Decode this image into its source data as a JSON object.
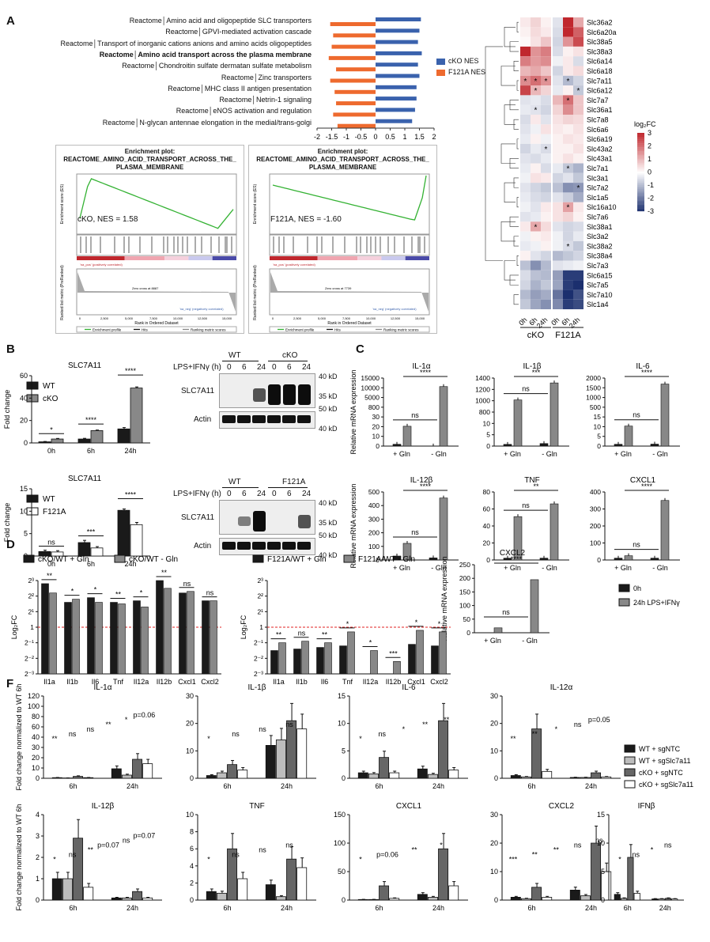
{
  "panels": {
    "a": "A",
    "b": "B",
    "c": "C",
    "d": "D",
    "e": "E",
    "f": "F"
  },
  "colors": {
    "cko": "#3a62ad",
    "f121a": "#ee6a2e",
    "pos": "#c0272d",
    "neg": "#1b2f6e",
    "grey": "#888888",
    "dark": "#1a1a1a",
    "light": "#bdbdbd",
    "white": "#ffffff"
  },
  "nes": {
    "labels": [
      "Reactome│Amino acid and oligopeptide SLC transporters",
      "Reactome│GPVI-mediated activation cascade",
      "Reactome│Transport of inorganic cations anions and amino acids oligopeptides",
      "Reactome│Amino acid transport across the plasma membrane",
      "Reactome│Chondroitin sulfate dermatan sulfate metabolism",
      "Reactome│Zinc transporters",
      "Reactome│MHC class II antigen presentation",
      "Reactome│Netrin-1 signaling",
      "Reactome│eNOS activation and regulation",
      "Reactome│N-glycan antennae elongation in the medial/trans-golgi"
    ],
    "bold_index": 3,
    "cko": [
      1.55,
      1.5,
      1.45,
      1.58,
      1.45,
      1.5,
      1.4,
      1.4,
      1.35,
      1.25
    ],
    "f121a": [
      -1.55,
      -1.45,
      -1.5,
      -1.6,
      -1.35,
      -1.55,
      -1.4,
      -1.35,
      -1.45,
      -1.3
    ],
    "ticks": [
      "-2",
      "-1.5",
      "-1",
      "-0.5",
      "0",
      "0.5",
      "1",
      "1.5",
      "2"
    ],
    "legend_cko": "cKO NES",
    "legend_f121a": "F121A NES"
  },
  "gsea": {
    "title1": "Enrichment plot:",
    "title2": "REACTOME_AMINO_ACID_TRANSPORT_ACROSS_THE_",
    "title3": "PLASMA_MEMBRANE",
    "cko_nes": "cKO, NES = 1.58",
    "f121a_nes": "F121A, NES = -1.60",
    "ylab_top": "Enrichment score (ES)",
    "ylab_bot": "Ranked list metric (PreRanked)",
    "xlab": "Rank in Ordered Dataset",
    "pos_tag": "'na_pos' (positively correlated)",
    "neg_tag": "'na_neg' (negatively correlated)",
    "zero_cko": "Zero cross at 8887",
    "zero_f121a": "Zero cross at 7739",
    "legend": [
      "Enrichment profile",
      "Hits",
      "Ranking metric scores"
    ],
    "xticks": [
      "0",
      "2,500",
      "5,000",
      "7,500",
      "10,000",
      "12,500",
      "15,000"
    ]
  },
  "heatmap": {
    "genes": [
      "Slc36a2",
      "Slc6a20a",
      "Slc38a5",
      "Slc38a3",
      "Slc6a14",
      "Slc6a18",
      "Slc7a11",
      "Slc6a12",
      "Slc7a7",
      "Slc36a1",
      "Slc7a8",
      "Slc6a6",
      "Slc6a19",
      "Slc43a2",
      "Slc43a1",
      "Slc7a1",
      "Slc3a1",
      "Slc7a2",
      "Slc1a5",
      "Slc16a10",
      "Slc7a6",
      "Slc38a1",
      "Slc3a2",
      "Slc38a2",
      "Slc38a4",
      "Slc7a3",
      "Slc6a15",
      "Slc7a5",
      "Slc7a10",
      "Slc1a4"
    ],
    "values": [
      [
        0.3,
        0.6,
        0.2,
        -0.4,
        3.0,
        1.2
      ],
      [
        0.2,
        0.5,
        0.3,
        -0.5,
        3.0,
        2.2
      ],
      [
        0.1,
        0.4,
        0.8,
        -0.6,
        1.5,
        2.5
      ],
      [
        3.0,
        1.5,
        1.8,
        -0.5,
        0.2,
        0.4
      ],
      [
        1.8,
        1.4,
        1.6,
        -0.2,
        0.3,
        -0.5
      ],
      [
        1.0,
        1.2,
        0.8,
        -0.6,
        0.3,
        0.5
      ],
      [
        1.6,
        2.0,
        1.5,
        -0.4,
        -1.0,
        -0.6
      ],
      [
        2.6,
        1.0,
        0.6,
        -0.3,
        0.2,
        -0.8
      ],
      [
        -0.4,
        -0.3,
        -0.5,
        1.0,
        2.0,
        0.8
      ],
      [
        -0.3,
        -0.4,
        -0.6,
        0.6,
        1.6,
        0.8
      ],
      [
        -0.5,
        0.3,
        -0.4,
        0.4,
        0.6,
        0.5
      ],
      [
        -0.4,
        -0.2,
        0.4,
        0.3,
        0.2,
        0.4
      ],
      [
        -0.3,
        0.2,
        -0.2,
        0.2,
        0.4,
        0.3
      ],
      [
        -0.6,
        -0.3,
        -0.5,
        0.2,
        0.2,
        0.4
      ],
      [
        -0.4,
        -0.5,
        -0.3,
        0.2,
        0.4,
        0.2
      ],
      [
        -0.3,
        0.2,
        -0.5,
        -0.3,
        -0.8,
        -1.1
      ],
      [
        -0.2,
        0.4,
        0.3,
        -0.6,
        -0.4,
        -0.8
      ],
      [
        -0.4,
        -0.6,
        -0.8,
        -0.9,
        -1.6,
        -1.5
      ],
      [
        -0.3,
        -0.5,
        -0.6,
        -0.4,
        -0.7,
        -1.2
      ],
      [
        -0.2,
        -0.4,
        0.3,
        0.4,
        1.3,
        0.3
      ],
      [
        -0.4,
        -0.3,
        0.2,
        0.4,
        0.6,
        0.2
      ],
      [
        0.3,
        1.2,
        0.5,
        -0.4,
        -0.6,
        -0.5
      ],
      [
        -0.2,
        0.2,
        0.3,
        -0.2,
        -0.6,
        -0.3
      ],
      [
        -0.3,
        -0.2,
        0.2,
        -0.2,
        -0.5,
        -0.8
      ],
      [
        0.2,
        -0.4,
        -0.6,
        -1.0,
        -0.8,
        -0.6
      ],
      [
        -0.9,
        -1.6,
        -1.0,
        -0.4,
        -0.3,
        -0.2
      ],
      [
        -0.5,
        -0.9,
        -1.0,
        -1.4,
        -2.8,
        -2.8
      ],
      [
        -0.6,
        -1.1,
        -0.8,
        -1.3,
        -2.8,
        -3.0
      ],
      [
        -1.0,
        -1.4,
        -1.2,
        -2.0,
        -3.0,
        -2.5
      ],
      [
        -0.8,
        -1.3,
        -1.6,
        -1.7,
        -2.8,
        -2.6
      ]
    ],
    "stars": [
      [
        6,
        0
      ],
      [
        6,
        1
      ],
      [
        6,
        2
      ],
      [
        6,
        4
      ],
      [
        7,
        1
      ],
      [
        7,
        5
      ],
      [
        8,
        4
      ],
      [
        9,
        1
      ],
      [
        13,
        2
      ],
      [
        15,
        4
      ],
      [
        17,
        5
      ],
      [
        19,
        4
      ],
      [
        21,
        1
      ],
      [
        23,
        4
      ]
    ],
    "star": "*",
    "cols": [
      "0h",
      "6h",
      "24h",
      "0h",
      "6h",
      "24h"
    ],
    "group_cko": "cKO",
    "group_f121a": "F121A",
    "scale_title": "log₂FC",
    "scale_ticks": [
      "3",
      "2",
      "1",
      "0",
      "-1",
      "-2",
      "-3"
    ]
  },
  "b_top": {
    "title": "SLC7A11",
    "ylabel": "Fold change",
    "legend": [
      "WT",
      "cKO"
    ],
    "groups": [
      "0h",
      "6h",
      "24h"
    ],
    "s1": [
      1.0,
      3.5,
      12.5
    ],
    "s2": [
      3.5,
      11.0,
      49.0
    ],
    "err1": [
      0.3,
      0.6,
      1.2
    ],
    "err2": [
      0.5,
      0.5,
      1.0
    ],
    "ymax": 60,
    "yticks": [
      "0",
      "20",
      "40",
      "60"
    ],
    "sig": [
      "*",
      "****",
      "****"
    ]
  },
  "b_bot": {
    "title": "SLC7A11",
    "ylabel": "Fold change",
    "legend": [
      "WT",
      "F121A"
    ],
    "groups": [
      "0h",
      "6h",
      "24h"
    ],
    "s1": [
      1.0,
      3.0,
      10.2
    ],
    "s2": [
      0.9,
      1.8,
      7.0
    ],
    "err1": [
      0.3,
      0.5,
      0.3
    ],
    "err2": [
      0.3,
      0.3,
      0.5
    ],
    "ymax": 15,
    "yticks": [
      "0",
      "5",
      "10",
      "15"
    ],
    "sig": [
      "ns",
      "***",
      "****"
    ]
  },
  "blot1": {
    "cond": "LPS+IFNγ (h)",
    "g1": "WT",
    "g2": "cKO",
    "lanes": [
      "0",
      "6",
      "24",
      "0",
      "6",
      "24"
    ],
    "bands": [
      "SLC7A11",
      "Actin"
    ],
    "kd": [
      "40 kD",
      "35 kD",
      "50 kD",
      "40 kD"
    ]
  },
  "blot2": {
    "cond": "LPS+IFNγ (h)",
    "g1": "WT",
    "g2": "F121A",
    "lanes": [
      "0",
      "6",
      "24",
      "0",
      "6",
      "24"
    ],
    "bands": [
      "SLC7A11",
      "Actin"
    ],
    "kd": [
      "40 kD",
      "35 kD",
      "50 kD",
      "40 kD"
    ]
  },
  "c_panels": [
    {
      "title": "IL-1α",
      "ymax": 12000,
      "yticks": [
        "0",
        "10",
        "20",
        "30",
        "800",
        "5000",
        "10000",
        "15000"
      ],
      "vals": [
        0.5,
        3500,
        13,
        10500
      ],
      "sig": [
        "ns",
        "****"
      ]
    },
    {
      "title": "IL-1β",
      "ymax": 1400,
      "yticks": [
        "0",
        "5",
        "10",
        "800",
        "1000",
        "1200",
        "1400"
      ],
      "vals": [
        0.3,
        950,
        2,
        1300
      ],
      "sig": [
        "ns",
        "***"
      ]
    },
    {
      "title": "IL-6",
      "ymax": 1700,
      "yticks": [
        "0",
        "5",
        "10",
        "15",
        "500",
        "1000",
        "1500",
        "2000"
      ],
      "vals": [
        0.5,
        500,
        0.8,
        1550
      ],
      "sig": [
        "ns",
        "****"
      ]
    },
    {
      "title": "IL-12β",
      "ymax": 450,
      "yticks": [
        "0",
        "100",
        "200",
        "300",
        "400",
        "500"
      ],
      "vals": [
        5,
        110,
        1,
        410
      ],
      "sig": [
        "ns",
        "****"
      ]
    },
    {
      "title": "TNF",
      "ymax": 80,
      "yticks": [
        "0",
        "20",
        "40",
        "60",
        "80"
      ],
      "vals": [
        0.5,
        51,
        0.5,
        66
      ],
      "sig": [
        "ns",
        "**"
      ]
    },
    {
      "title": "CXCL1",
      "ymax": 400,
      "yticks": [
        "0",
        "100",
        "200",
        "300",
        "400"
      ],
      "vals": [
        0.5,
        25,
        0.5,
        350
      ],
      "sig": [
        "ns",
        "****"
      ]
    }
  ],
  "c_ylabel": "Relative mRNA expression",
  "c_xcats": [
    "+ Gln",
    "- Gln"
  ],
  "c_cxcl2": {
    "title": "CXCL2",
    "ymax": 250,
    "yticks": [
      "0",
      "50",
      "100",
      "150",
      "200",
      "250"
    ],
    "vals": [
      0.5,
      18,
      0.5,
      195
    ],
    "sig": [
      "ns",
      "****"
    ],
    "legend": [
      "0h",
      "24h LPS+IFNγ"
    ]
  },
  "d": {
    "legend": [
      "cKO/WT + Gln",
      "cKO/WT - Gln"
    ],
    "ylabel": "Log₂FC",
    "cats": [
      "Il1a",
      "Il1b",
      "Il6",
      "Tnf",
      "Il12a",
      "Il12b",
      "Cxcl1",
      "Cxcl2"
    ],
    "s1": [
      2.8,
      1.6,
      1.9,
      1.6,
      1.7,
      3.0,
      2.2,
      1.7
    ],
    "s2": [
      2.2,
      1.8,
      1.6,
      1.5,
      1.3,
      2.5,
      2.3,
      1.7
    ],
    "sig": [
      "**",
      "*",
      "*",
      "**",
      "*",
      "**",
      "ns",
      "ns"
    ],
    "yticks": [
      "2³",
      "2²",
      "2¹",
      "1",
      "2⁻¹",
      "2⁻²",
      "2⁻³"
    ]
  },
  "e": {
    "legend": [
      "F121A/WT + Gln",
      "F121A/WT - Gln"
    ],
    "ylabel": "Log₂FC",
    "cats": [
      "Il1a",
      "Il1b",
      "Il6",
      "Tnf",
      "Il12a",
      "Il12b",
      "Cxcl1",
      "Cxcl2"
    ],
    "s1": [
      -1.5,
      -1.4,
      -1.3,
      -1.2,
      -3.0,
      -3.3,
      -1.1,
      -1.2
    ],
    "s2": [
      -1.0,
      -0.9,
      -1.0,
      -0.3,
      -1.5,
      -2.2,
      -0.2,
      -0.3
    ],
    "sig": [
      "**",
      "ns",
      "**",
      "*",
      "*",
      "***",
      "*",
      "*"
    ],
    "yticks": [
      "2³",
      "2²",
      "2¹",
      "1",
      "2⁻¹",
      "2⁻²",
      "2⁻³"
    ]
  },
  "f_ylabel": "Fold change normalized to WT 6h",
  "f_groups": [
    "6h",
    "24h"
  ],
  "f_legend": [
    "WT + sgNTC",
    "WT + sgSlc7a11",
    "cKO + sgNTC",
    "cKO + sgSlc7a11"
  ],
  "f_panels": [
    {
      "title": "IL-1α",
      "ymax": 130,
      "yticks": [
        "0",
        "10",
        "20",
        "30",
        "40",
        "60",
        "80",
        "100",
        "120"
      ],
      "v6": [
        1,
        0.5,
        3,
        1
      ],
      "v24": [
        15,
        5,
        30,
        23
      ],
      "sig": [
        "**",
        "ns",
        "ns",
        "**",
        "*",
        "p=0.06"
      ]
    },
    {
      "title": "IL-1β",
      "ymax": 30,
      "yticks": [
        "0",
        "10",
        "20",
        "30"
      ],
      "v6": [
        1,
        2,
        5,
        3
      ],
      "v24": [
        12,
        14,
        21,
        18
      ],
      "sig": [
        "*",
        "ns",
        "ns",
        "ns"
      ]
    },
    {
      "title": "IL-6",
      "ymax": 15,
      "yticks": [
        "0",
        "5",
        "10",
        "15"
      ],
      "v6": [
        1,
        0.8,
        3.8,
        1
      ],
      "v24": [
        1.7,
        0.7,
        10.5,
        1.5
      ],
      "sig": [
        "*",
        "ns",
        "*",
        "**",
        "**"
      ]
    },
    {
      "title": "IL-12α",
      "ymax": 30,
      "yticks": [
        "0",
        "10",
        "20",
        "30"
      ],
      "v6": [
        1,
        0.5,
        18,
        2.5
      ],
      "v24": [
        0.3,
        0.3,
        2,
        0.5
      ],
      "sig": [
        "**",
        "**",
        "*",
        "ns",
        "p=0.05"
      ]
    },
    {
      "title": "IL-12β",
      "ymax": 4,
      "yticks": [
        "0",
        "1",
        "2",
        "3",
        "4"
      ],
      "v6": [
        1,
        1,
        2.9,
        0.6
      ],
      "v24": [
        0.1,
        0.1,
        0.4,
        0.1
      ],
      "sig": [
        "*",
        "ns",
        "**",
        "p=0.07",
        "ns",
        "p=0.07"
      ]
    },
    {
      "title": "TNF",
      "ymax": 10,
      "yticks": [
        "0",
        "2",
        "4",
        "6",
        "8",
        "10"
      ],
      "v6": [
        1,
        0.8,
        6,
        2.5
      ],
      "v24": [
        1.8,
        0.4,
        4.8,
        3.8
      ],
      "sig": [
        "*",
        "ns",
        "ns",
        "ns"
      ]
    },
    {
      "title": "CXCL1",
      "ymax": 150,
      "yticks": [
        "0",
        "50",
        "100",
        "150"
      ],
      "v6": [
        1,
        1,
        25,
        3
      ],
      "v24": [
        10,
        5,
        90,
        25
      ],
      "sig": [
        "*",
        "p=0.06",
        "**",
        "*"
      ]
    },
    {
      "title": "CXCL2",
      "ymax": 30,
      "yticks": [
        "0",
        "10",
        "20",
        "30"
      ],
      "v6": [
        1,
        0.5,
        4.5,
        1
      ],
      "v24": [
        3.5,
        1.5,
        20,
        10
      ],
      "sig": [
        "***",
        "**",
        "**",
        "ns",
        "ns"
      ]
    },
    {
      "title": "IFNβ",
      "ymax": 15,
      "yticks": [
        "0",
        "5",
        "10",
        "15"
      ],
      "v6": [
        1,
        0.3,
        7.5,
        1.2
      ],
      "v24": [
        0.2,
        0.2,
        0.3,
        0.2
      ],
      "sig": [
        "*",
        "ns",
        "*",
        "ns"
      ]
    }
  ]
}
